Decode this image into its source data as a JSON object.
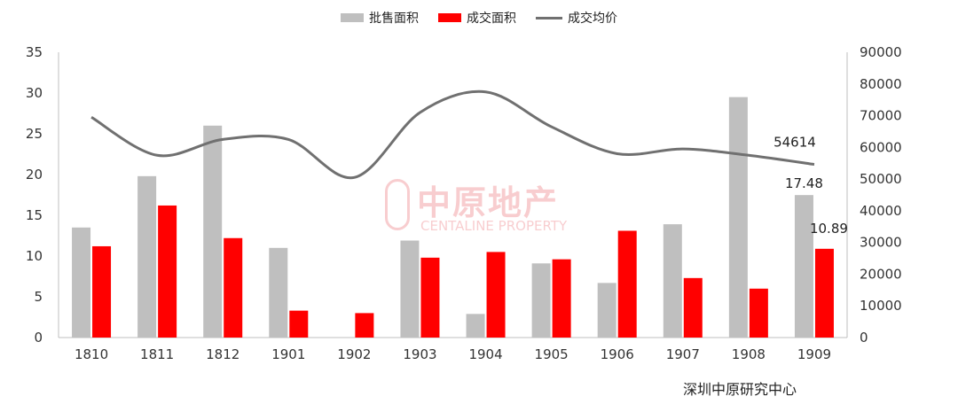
{
  "chart_data": {
    "type": "bar",
    "categories": [
      "1810",
      "1811",
      "1812",
      "1901",
      "1902",
      "1903",
      "1904",
      "1905",
      "1906",
      "1907",
      "1908",
      "1909"
    ],
    "series": [
      {
        "name": "批售面积",
        "kind": "bar",
        "axis": "left",
        "color": "#bfbfbf",
        "values": [
          13.5,
          19.8,
          26.0,
          11.0,
          0,
          11.9,
          2.9,
          9.1,
          6.7,
          13.9,
          29.5,
          17.48
        ]
      },
      {
        "name": "成交面积",
        "kind": "bar",
        "axis": "left",
        "color": "#ff0000",
        "values": [
          11.2,
          16.2,
          12.2,
          3.3,
          3.0,
          9.8,
          10.5,
          9.6,
          13.1,
          7.3,
          6.0,
          10.89
        ]
      },
      {
        "name": "成交均价",
        "kind": "line",
        "axis": "right",
        "color": "#707070",
        "values": [
          69500,
          57500,
          62500,
          62500,
          50500,
          71000,
          77500,
          66500,
          58000,
          59500,
          57500,
          54614
        ]
      }
    ],
    "ylim_left": [
      0,
      35
    ],
    "yticks_left": [
      "0",
      "5",
      "10",
      "15",
      "20",
      "25",
      "30",
      "35"
    ],
    "ylim_right": [
      0,
      90000
    ],
    "yticks_right": [
      "0",
      "10000",
      "20000",
      "30000",
      "40000",
      "50000",
      "60000",
      "70000",
      "80000",
      "90000"
    ],
    "data_labels": [
      {
        "series": 1,
        "index": 11,
        "text": "17.48"
      },
      {
        "series": 2,
        "index": 11,
        "text": "10.89"
      },
      {
        "series": 3,
        "index": 11,
        "text": "54614"
      }
    ],
    "legend": "top-center",
    "grid": false
  },
  "source": "深圳中原研究中心",
  "watermark": {
    "main": "中原地产",
    "sub": "CENTALINE PROPERTY"
  }
}
